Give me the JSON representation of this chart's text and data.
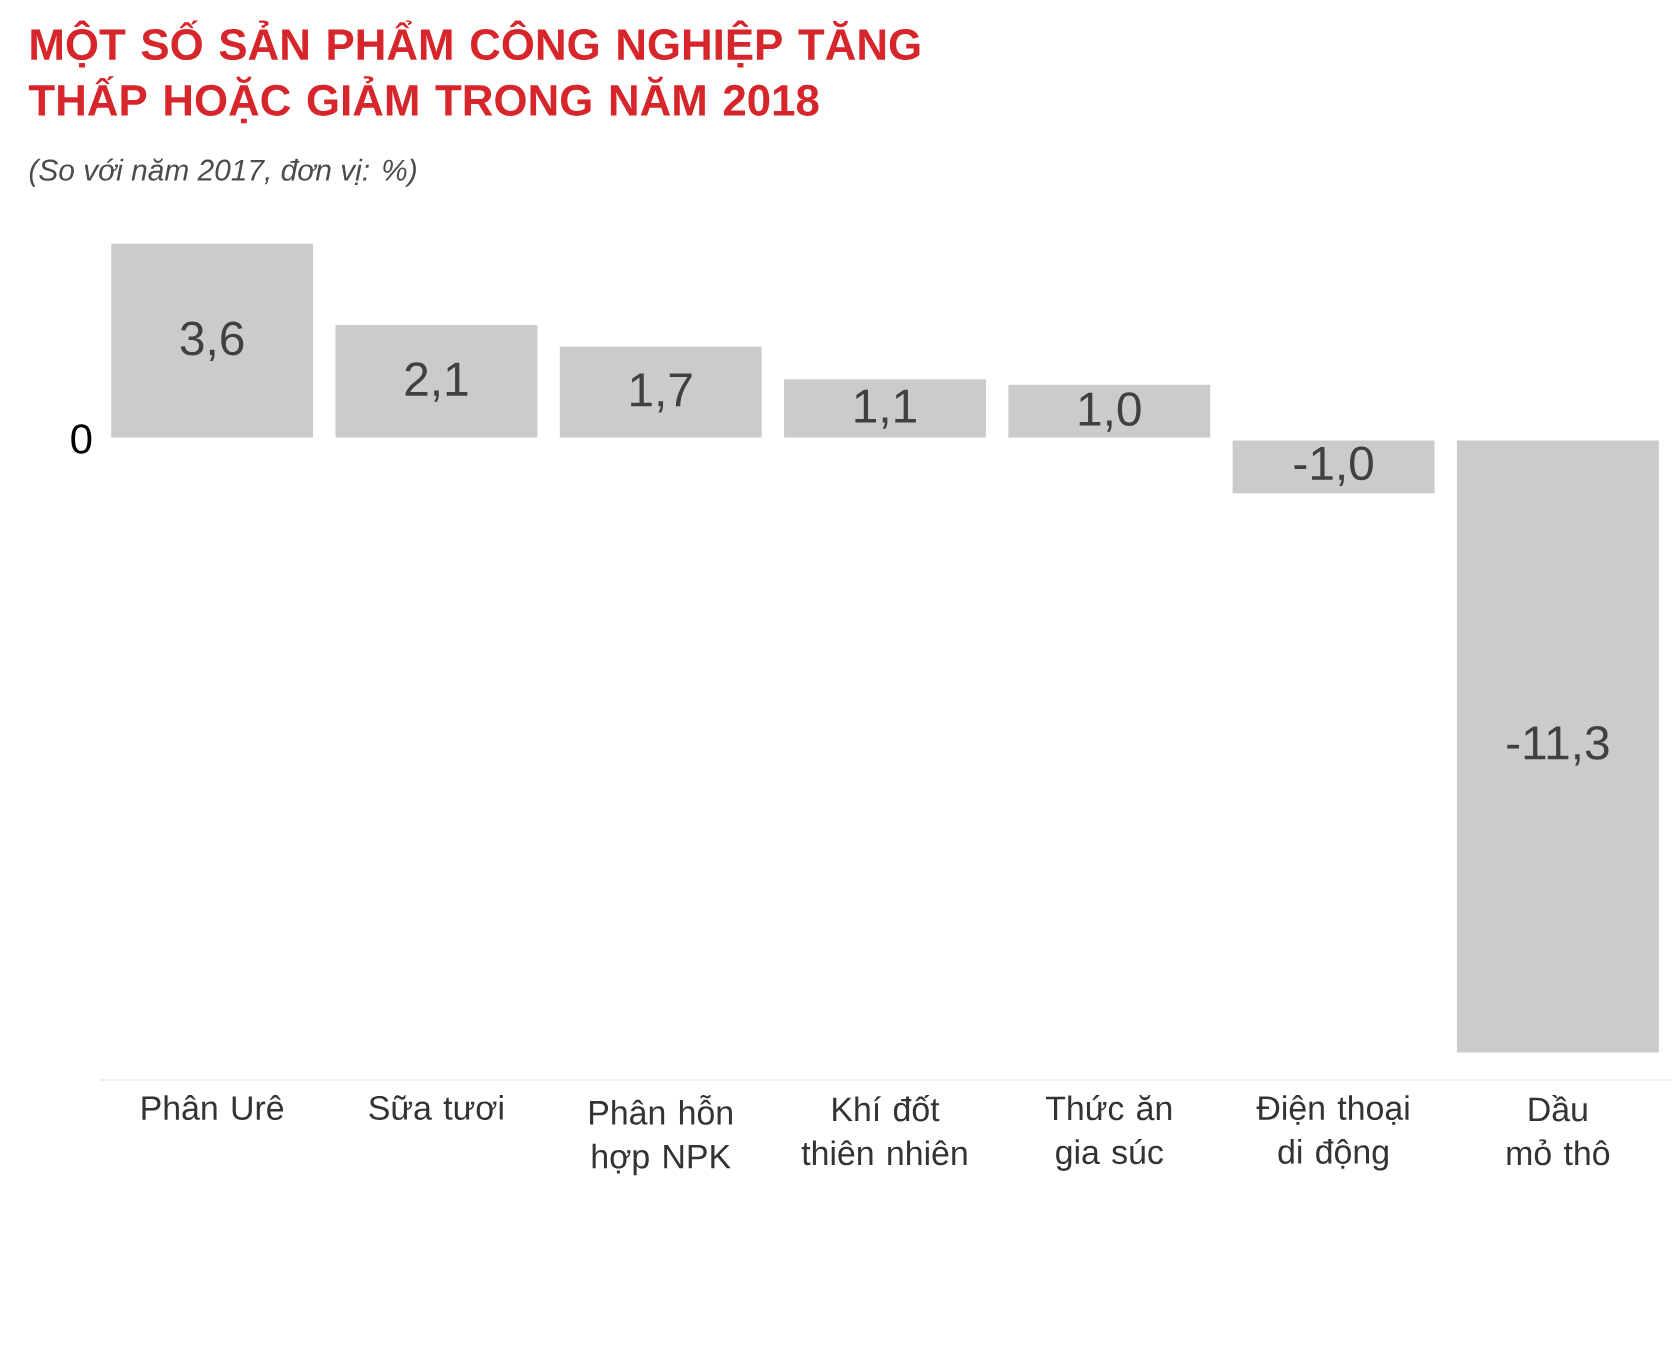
{
  "chart_data": {
    "type": "bar",
    "title": "MỘT SỐ SẢN PHẨM CÔNG NGHIỆP TĂNG THẤP HOẶC GIẢM TRONG NĂM 2018",
    "subtitle": "(So với năm 2017, đơn vị: %)",
    "categories": [
      "Phân Urê",
      "Sữa tươi",
      "Phân hỗn hợp NPK",
      "Khí đốt thiên nhiên",
      "Thức ăn gia súc",
      "Điện thoại di động",
      "Dầu mỏ thô"
    ],
    "values": [
      3.6,
      2.1,
      1.7,
      1.1,
      1.0,
      -1.0,
      -11.3
    ],
    "value_labels": [
      "3,6",
      "2,1",
      "1,7",
      "1,1",
      "1,0",
      "-1,0",
      "-11,3"
    ],
    "color": "#cbcbcb",
    "annotations": [
      "0"
    ]
  }
}
